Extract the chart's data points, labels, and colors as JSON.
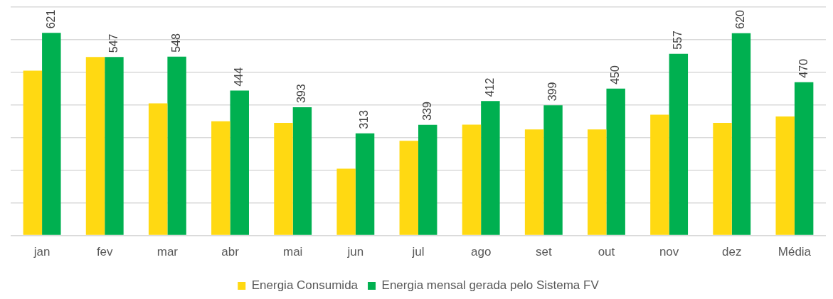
{
  "chart_data": {
    "type": "bar",
    "categories": [
      "jan",
      "fev",
      "mar",
      "abr",
      "mai",
      "jun",
      "jul",
      "ago",
      "set",
      "out",
      "nov",
      "dez",
      "Média"
    ],
    "series": [
      {
        "name": "Energia Consumida",
        "color": "#ffd912",
        "values": [
          505,
          547,
          405,
          350,
          345,
          205,
          290,
          340,
          325,
          325,
          370,
          345,
          365
        ]
      },
      {
        "name": "Energia mensal gerada pelo Sistema FV",
        "color": "#00b050",
        "values": [
          621,
          547,
          548,
          444,
          393,
          313,
          339,
          412,
          399,
          450,
          557,
          620,
          470
        ],
        "value_labels": [
          "621",
          "547",
          "548",
          "444",
          "393",
          "313",
          "339",
          "412",
          "399",
          "450",
          "557",
          "620",
          "470"
        ]
      }
    ],
    "ylim": [
      0,
      700
    ],
    "yticks": [
      {
        "value": 0,
        "label": null
      },
      {
        "value": 100,
        "label": null
      },
      {
        "value": 200,
        "label": null
      },
      {
        "value": 300,
        "label": null
      },
      {
        "value": 400,
        "label": null
      },
      {
        "value": 500,
        "label": null
      },
      {
        "value": 600,
        "label": null
      },
      {
        "value": 700,
        "label": null
      }
    ],
    "tick_labels": "x",
    "grid": "y",
    "legend": "bottom"
  }
}
